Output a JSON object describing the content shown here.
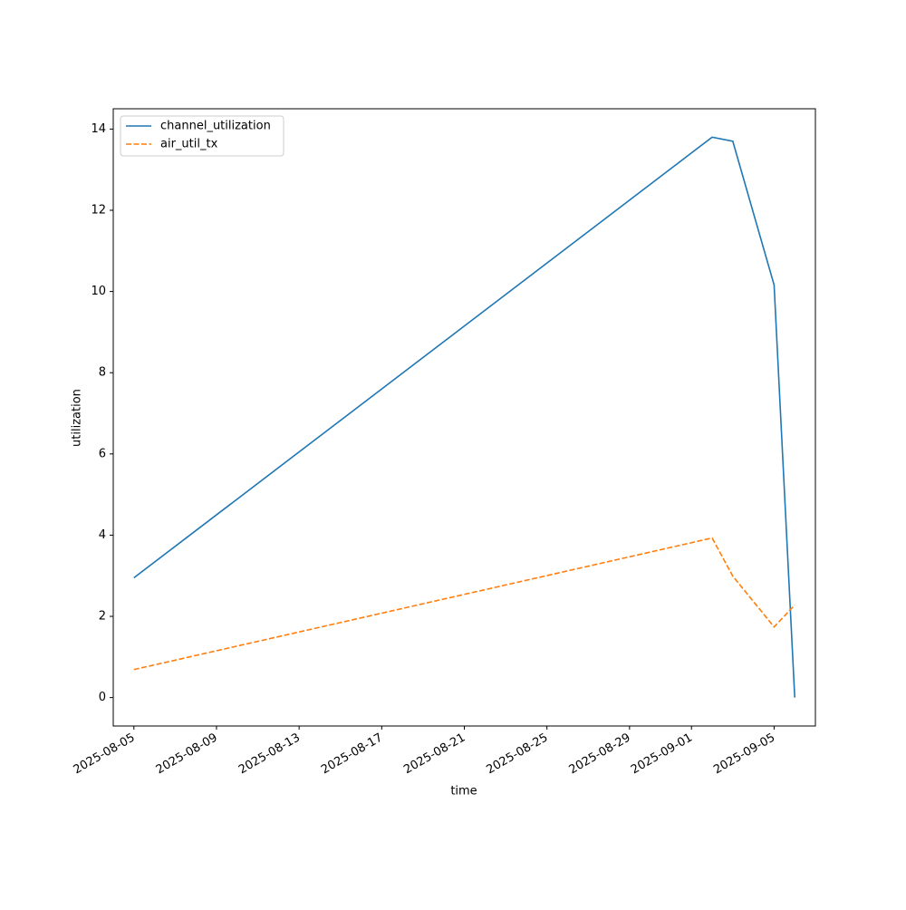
{
  "chart_data": {
    "type": "line",
    "x_label": "time",
    "y_label": "utilization",
    "x": [
      "2025-08-05",
      "2025-09-02",
      "2025-09-03",
      "2025-09-05",
      "2025-09-06"
    ],
    "series": [
      {
        "name": "channel_utilization",
        "color": "#1f77b4",
        "linestyle": "solid",
        "values": [
          2.95,
          13.8,
          13.7,
          10.16,
          0
        ]
      },
      {
        "name": "air_util_tx",
        "color": "#ff7f0e",
        "linestyle": "dashed",
        "values": [
          0.69,
          3.93,
          2.99,
          1.74,
          2.28
        ]
      }
    ],
    "xlim": [
      "2025-08-04",
      "2025-09-07"
    ],
    "xticks": [
      "2025-08-05",
      "2025-08-09",
      "2025-08-13",
      "2025-08-17",
      "2025-08-21",
      "2025-08-25",
      "2025-08-29",
      "2025-09-01",
      "2025-09-05"
    ],
    "ylim": [
      -0.7,
      14.5
    ],
    "yticks": [
      0,
      2,
      4,
      6,
      8,
      10,
      12,
      14
    ],
    "grid": false,
    "legend": "upper left"
  }
}
